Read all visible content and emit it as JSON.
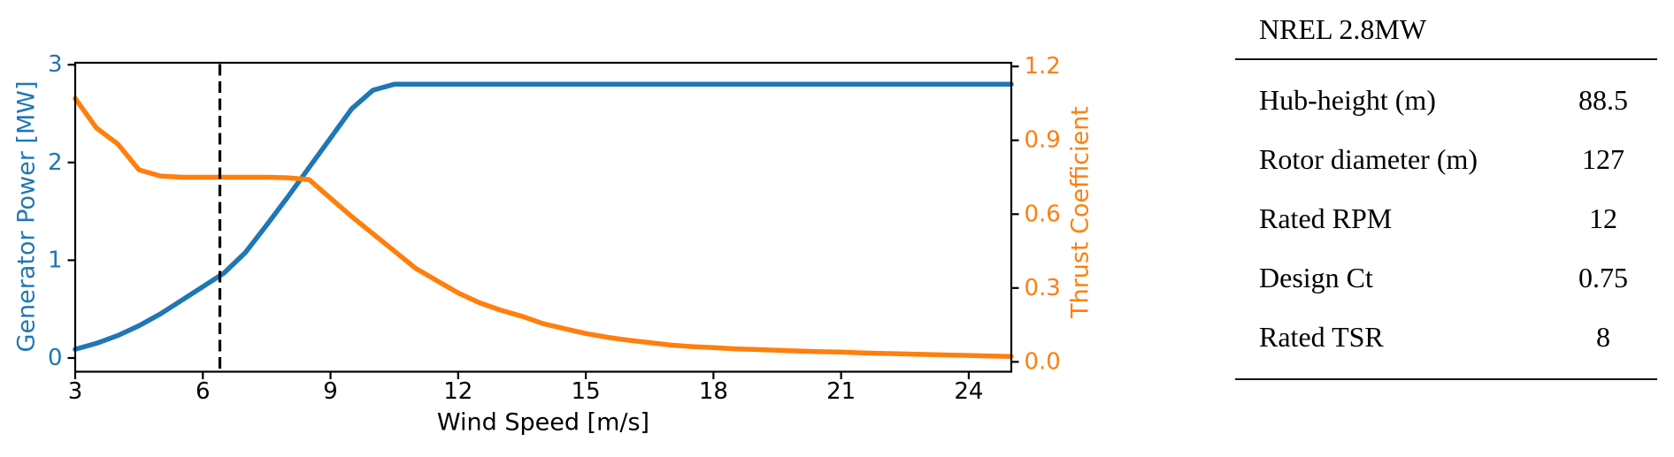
{
  "chart_data": {
    "type": "line",
    "title": "",
    "xlabel": "Wind Speed [m/s]",
    "ylabel_left": "Generator Power [MW]",
    "ylabel_right": "Thrust Coefficient",
    "xlim": [
      3,
      25
    ],
    "ylim_left": [
      -0.14,
      3.02
    ],
    "ylim_right": [
      -0.04,
      1.215
    ],
    "xticks": [
      3,
      6,
      9,
      12,
      15,
      18,
      21,
      24
    ],
    "xtick_labels": [
      "3",
      "6",
      "9",
      "12",
      "15",
      "18",
      "21",
      "24"
    ],
    "yticks_left": [
      0,
      1,
      2,
      3
    ],
    "ytick_labels_left": [
      "0",
      "1",
      "2",
      "3"
    ],
    "yticks_right": [
      0.0,
      0.3,
      0.6,
      0.9,
      1.2
    ],
    "ytick_labels_right": [
      "0.0",
      "0.3",
      "0.6",
      "0.9",
      "1.2"
    ],
    "grid": false,
    "legend": false,
    "axis_text_color_left": "#1f77b4",
    "axis_text_color_right": "#ff7f0e",
    "axis_text_color_x": "#000000",
    "spine_color": "#000000",
    "x": [
      3,
      3.5,
      4,
      4.5,
      5,
      5.5,
      6,
      6.5,
      7,
      7.5,
      8,
      8.5,
      9,
      9.5,
      10,
      10.5,
      11,
      11.5,
      12,
      12.5,
      13,
      13.5,
      14,
      14.5,
      15,
      15.5,
      16,
      16.5,
      17,
      17.5,
      18,
      18.5,
      19,
      19.5,
      20,
      20.5,
      21,
      21.5,
      22,
      22.5,
      23,
      23.5,
      24,
      24.5,
      25
    ],
    "series": [
      {
        "name": "Generator Power [MW]",
        "axis": "left",
        "color": "#1f77b4",
        "values": [
          0.09,
          0.15,
          0.23,
          0.33,
          0.45,
          0.59,
          0.73,
          0.87,
          1.08,
          1.36,
          1.65,
          1.95,
          2.25,
          2.55,
          2.74,
          2.8,
          2.8,
          2.8,
          2.8,
          2.8,
          2.8,
          2.8,
          2.8,
          2.8,
          2.8,
          2.8,
          2.8,
          2.8,
          2.8,
          2.8,
          2.8,
          2.8,
          2.8,
          2.8,
          2.8,
          2.8,
          2.8,
          2.8,
          2.8,
          2.8,
          2.8,
          2.8,
          2.8,
          2.8,
          2.8
        ]
      },
      {
        "name": "Thrust Coefficient",
        "axis": "right",
        "color": "#ff7f0e",
        "values": [
          1.07,
          0.95,
          0.885,
          0.78,
          0.755,
          0.75,
          0.75,
          0.75,
          0.75,
          0.75,
          0.748,
          0.74,
          0.665,
          0.59,
          0.52,
          0.45,
          0.38,
          0.33,
          0.28,
          0.24,
          0.21,
          0.185,
          0.155,
          0.135,
          0.115,
          0.1,
          0.088,
          0.078,
          0.068,
          0.062,
          0.058,
          0.053,
          0.05,
          0.047,
          0.044,
          0.041,
          0.04,
          0.036,
          0.034,
          0.032,
          0.03,
          0.028,
          0.026,
          0.024,
          0.022
        ]
      }
    ],
    "vline": {
      "x": 6.4,
      "color": "#000000",
      "style": "dashed"
    }
  },
  "table": {
    "title": "NREL 2.8MW",
    "rows": [
      {
        "label": "Hub-height (m)",
        "value": "88.5"
      },
      {
        "label": "Rotor diameter (m)",
        "value": "127"
      },
      {
        "label": "Rated RPM",
        "value": "12"
      },
      {
        "label": "Design Ct",
        "value": "0.75"
      },
      {
        "label": "Rated TSR",
        "value": "8"
      }
    ]
  }
}
